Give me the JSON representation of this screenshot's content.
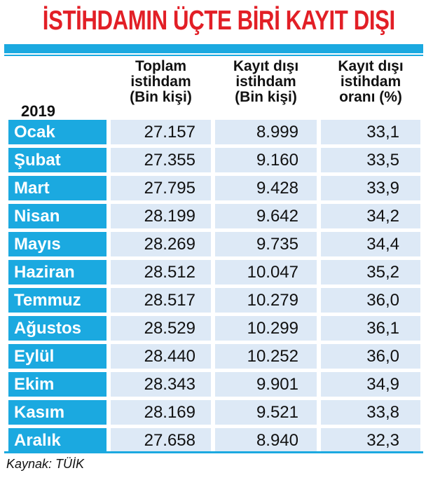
{
  "title": "İSTİHDAMIN ÜÇTE BİRİ KAYIT DIŞI",
  "year_label": "2019",
  "headers": {
    "col1": [
      "Toplam",
      "istihdam",
      "(Bin kişi)"
    ],
    "col2": [
      "Kayıt dışı",
      "istihdam",
      "(Bin kişi)"
    ],
    "col3": [
      "Kayıt dışı",
      "istihdam",
      "oranı (%)"
    ]
  },
  "source": "Kaynak: TÜİK",
  "colors": {
    "title": "#e21f26",
    "accent": "#1ba9e0",
    "cell_bg": "#dde9f6"
  },
  "chart_data": {
    "type": "table",
    "title": "İSTİHDAMIN ÜÇTE BİRİ KAYIT DIŞI",
    "columns": [
      "2019",
      "Toplam istihdam (Bin kişi)",
      "Kayıt dışı istihdam (Bin kişi)",
      "Kayıt dışı istihdam oranı (%)"
    ],
    "rows": [
      [
        "Ocak",
        "27.157",
        "8.999",
        "33,1"
      ],
      [
        "Şubat",
        "27.355",
        "9.160",
        "33,5"
      ],
      [
        "Mart",
        "27.795",
        "9.428",
        "33,9"
      ],
      [
        "Nisan",
        "28.199",
        "9.642",
        "34,2"
      ],
      [
        "Mayıs",
        "28.269",
        "9.735",
        "34,4"
      ],
      [
        "Haziran",
        "28.512",
        "10.047",
        "35,2"
      ],
      [
        "Temmuz",
        "28.517",
        "10.279",
        "36,0"
      ],
      [
        "Ağustos",
        "28.529",
        "10.299",
        "36,1"
      ],
      [
        "Eylül",
        "28.440",
        "10.252",
        "36,0"
      ],
      [
        "Ekim",
        "28.343",
        "9.901",
        "34,9"
      ],
      [
        "Kasım",
        "28.169",
        "9.521",
        "33,8"
      ],
      [
        "Aralık",
        "27.658",
        "8.940",
        "32,3"
      ]
    ]
  }
}
